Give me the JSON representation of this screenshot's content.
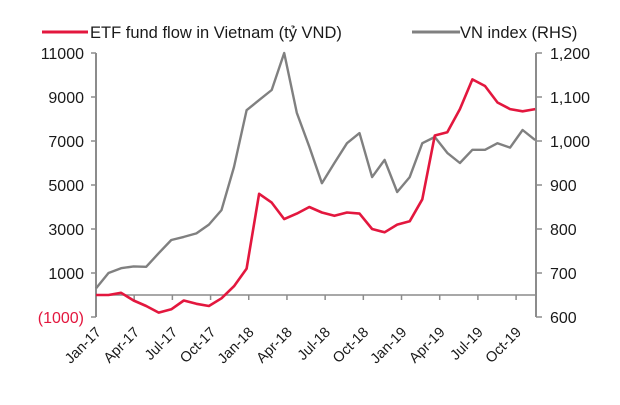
{
  "chart_data": {
    "type": "line",
    "title": "",
    "legend_placement": "top",
    "x": [
      "Jan-17",
      "Feb-17",
      "Mar-17",
      "Apr-17",
      "May-17",
      "Jun-17",
      "Jul-17",
      "Aug-17",
      "Sep-17",
      "Oct-17",
      "Nov-17",
      "Dec-17",
      "Jan-18",
      "Feb-18",
      "Mar-18",
      "Apr-18",
      "May-18",
      "Jun-18",
      "Jul-18",
      "Aug-18",
      "Sep-18",
      "Oct-18",
      "Nov-18",
      "Dec-18",
      "Jan-19",
      "Feb-19",
      "Mar-19",
      "Apr-19",
      "May-19",
      "Jun-19",
      "Jul-19",
      "Aug-19",
      "Sep-19",
      "Oct-19",
      "Nov-19",
      "Dec-19"
    ],
    "x_tick_labels": [
      "Jan-17",
      "Apr-17",
      "Jul-17",
      "Oct-17",
      "Jan-18",
      "Apr-18",
      "Jul-18",
      "Oct-18",
      "Jan-19",
      "Apr-19",
      "Jul-19",
      "Oct-19"
    ],
    "left_axis": {
      "ylim": [
        -1000,
        11000
      ],
      "ticks": [
        11000,
        9000,
        7000,
        5000,
        3000,
        1000,
        -1000
      ],
      "tick_labels": [
        "11000",
        "9000",
        "7000",
        "5000",
        "3000",
        "1000",
        "(1000)"
      ]
    },
    "right_axis": {
      "ylim": [
        600,
        1200
      ],
      "ticks": [
        1200,
        1100,
        1000,
        900,
        800,
        700,
        600
      ],
      "tick_labels": [
        "1,200",
        "1,100",
        "1,000",
        "900",
        "800",
        "700",
        "600"
      ]
    },
    "series": [
      {
        "name": "ETF  fund flow in Vietnam (tỷ VND)",
        "axis": "left",
        "color": "#e3173e",
        "values": [
          0,
          0,
          100,
          -250,
          -500,
          -800,
          -650,
          -250,
          -400,
          -500,
          -150,
          400,
          1200,
          4600,
          4200,
          3450,
          3700,
          4000,
          3750,
          3600,
          3750,
          3700,
          3000,
          2850,
          3200,
          3350,
          4350,
          7250,
          7400,
          8450,
          9800,
          9500,
          8750,
          8450,
          8350,
          8450
        ]
      },
      {
        "name": "VN index (RHS)",
        "axis": "right",
        "color": "#808080",
        "values": [
          665,
          700,
          711,
          715,
          714,
          745,
          775,
          782,
          790,
          810,
          843,
          941,
          1070,
          1093,
          1116,
          1200,
          1064,
          987,
          904,
          950,
          995,
          1018,
          918,
          957,
          884,
          918,
          995,
          1009,
          973,
          950,
          980,
          980,
          995,
          985,
          1025,
          1002
        ]
      }
    ]
  }
}
